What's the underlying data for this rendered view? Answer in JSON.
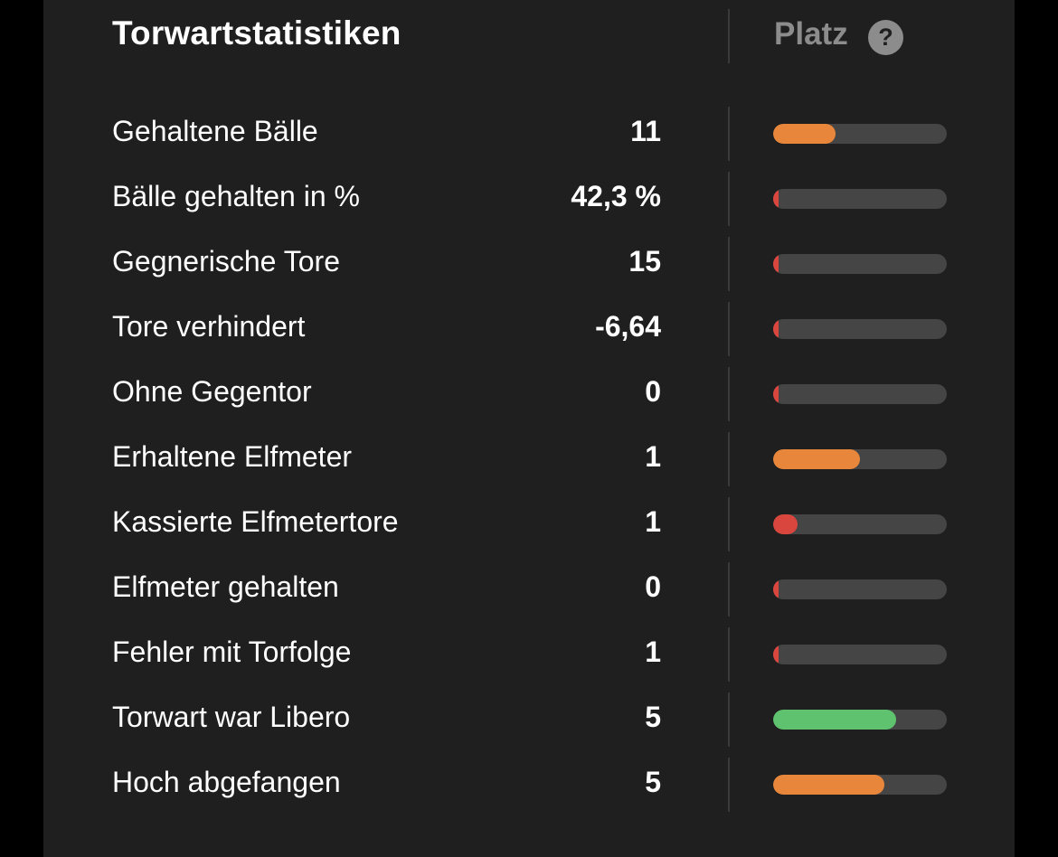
{
  "header": {
    "title": "Torwartstatistiken",
    "rank_label": "Platz",
    "help_glyph": "?"
  },
  "colors": {
    "orange": "#e8873b",
    "red": "#d9463e",
    "green": "#5ec26f",
    "track": "#454545"
  },
  "stats": [
    {
      "label": "Gehaltene Bälle",
      "value": "11",
      "rank_fraction": 0.36,
      "color": "orange"
    },
    {
      "label": "Bälle gehalten in %",
      "value": "42,3 %",
      "rank_fraction": 0.03,
      "color": "red"
    },
    {
      "label": "Gegnerische Tore",
      "value": "15",
      "rank_fraction": 0.03,
      "color": "red"
    },
    {
      "label": "Tore verhindert",
      "value": "-6,64",
      "rank_fraction": 0.03,
      "color": "red"
    },
    {
      "label": "Ohne Gegentor",
      "value": "0",
      "rank_fraction": 0.03,
      "color": "red"
    },
    {
      "label": "Erhaltene Elfmeter",
      "value": "1",
      "rank_fraction": 0.5,
      "color": "orange"
    },
    {
      "label": "Kassierte Elfmetertore",
      "value": "1",
      "rank_fraction": 0.14,
      "color": "red"
    },
    {
      "label": "Elfmeter gehalten",
      "value": "0",
      "rank_fraction": 0.03,
      "color": "red"
    },
    {
      "label": "Fehler mit Torfolge",
      "value": "1",
      "rank_fraction": 0.03,
      "color": "red"
    },
    {
      "label": "Torwart war Libero",
      "value": "5",
      "rank_fraction": 0.71,
      "color": "green"
    },
    {
      "label": "Hoch abgefangen",
      "value": "5",
      "rank_fraction": 0.64,
      "color": "orange"
    }
  ]
}
